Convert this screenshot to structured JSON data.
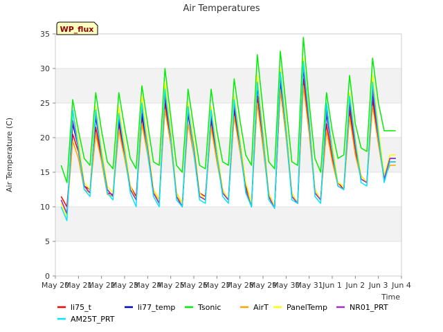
{
  "chart_data": {
    "type": "line",
    "title": "Air Temperatures",
    "xlabel": "Time",
    "ylabel": "Air Temperature (C)",
    "site_label": "WP_flux",
    "ylim": [
      0,
      35
    ],
    "yticks": [
      0,
      5,
      10,
      15,
      20,
      25,
      30,
      35
    ],
    "xlim": [
      0,
      15
    ],
    "xticks": [
      0,
      1,
      2,
      3,
      4,
      5,
      6,
      7,
      8,
      9,
      10,
      11,
      12,
      13,
      14,
      15
    ],
    "xtick_labels": [
      "May 20",
      "May 21",
      "May 22",
      "May 23",
      "May 24",
      "May 25",
      "May 26",
      "May 27",
      "May 28",
      "May 29",
      "May 30",
      "May 31",
      "Jun 1",
      "Jun 2",
      "Jun 3",
      "Jun 4"
    ],
    "grid": "alternating horizontal bands",
    "legend_position": "bottom",
    "x_desc": "day index from May 20 (sampled every 0.25 day)",
    "x": [
      0.25,
      0.5,
      0.75,
      1.0,
      1.25,
      1.5,
      1.75,
      2.0,
      2.25,
      2.5,
      2.75,
      3.0,
      3.25,
      3.5,
      3.75,
      4.0,
      4.25,
      4.5,
      4.75,
      5.0,
      5.25,
      5.5,
      5.75,
      6.0,
      6.25,
      6.5,
      6.75,
      7.0,
      7.25,
      7.5,
      7.75,
      8.0,
      8.25,
      8.5,
      8.75,
      9.0,
      9.25,
      9.5,
      9.75,
      10.0,
      10.25,
      10.5,
      10.75,
      11.0,
      11.25,
      11.5,
      11.75,
      12.0,
      12.25,
      12.5,
      12.75,
      13.0,
      13.25,
      13.5,
      13.75,
      14.0,
      14.25,
      14.5,
      14.75
    ],
    "series": [
      {
        "name": "li75_t",
        "color": "#ff0000",
        "values": [
          11.5,
          10.0,
          20.5,
          18.0,
          13.0,
          12.5,
          21.5,
          17.0,
          12.0,
          11.8,
          22.0,
          17.5,
          13.0,
          11.5,
          23.0,
          18.0,
          12.5,
          11.0,
          25.0,
          19.5,
          12.0,
          10.5,
          23.5,
          18.0,
          12.0,
          11.5,
          22.5,
          17.0,
          12.5,
          11.0,
          24.0,
          18.5,
          13.0,
          10.5,
          26.0,
          19.0,
          12.0,
          10.0,
          27.0,
          20.5,
          12.0,
          10.5,
          28.5,
          21.0,
          12.5,
          11.0,
          22.0,
          17.0,
          13.5,
          12.5,
          24.0,
          18.0,
          14.5,
          13.5,
          25.5,
          19.5,
          14.0,
          16.5,
          16.5
        ]
      },
      {
        "name": "li77_temp",
        "color": "#0000cc",
        "values": [
          11.0,
          9.0,
          22.0,
          18.5,
          13.0,
          12.0,
          23.0,
          17.5,
          12.5,
          11.5,
          22.5,
          18.0,
          12.5,
          11.0,
          23.5,
          18.5,
          12.0,
          10.5,
          26.0,
          20.0,
          11.5,
          10.0,
          23.5,
          18.5,
          11.5,
          11.0,
          23.0,
          17.5,
          12.0,
          11.0,
          24.5,
          19.0,
          12.5,
          10.0,
          27.5,
          20.0,
          11.5,
          9.8,
          28.0,
          21.0,
          11.5,
          10.5,
          30.0,
          22.0,
          12.0,
          11.0,
          23.5,
          18.0,
          13.0,
          12.5,
          25.0,
          19.0,
          14.0,
          13.5,
          26.5,
          20.0,
          14.0,
          17.0,
          17.0
        ]
      },
      {
        "name": "Tsonic",
        "color": "#00ee00",
        "values": [
          16.0,
          13.5,
          25.5,
          21.0,
          17.0,
          16.0,
          26.5,
          21.0,
          16.5,
          15.5,
          26.5,
          21.5,
          17.0,
          15.5,
          27.5,
          22.0,
          16.5,
          16.0,
          30.0,
          23.0,
          16.0,
          15.0,
          27.0,
          21.5,
          16.0,
          15.5,
          27.0,
          21.0,
          16.5,
          16.0,
          28.5,
          22.5,
          17.5,
          16.0,
          32.0,
          24.0,
          16.5,
          15.5,
          32.5,
          24.5,
          16.5,
          16.0,
          34.5,
          25.0,
          17.0,
          15.0,
          26.5,
          21.0,
          17.0,
          17.5,
          29.0,
          22.0,
          18.5,
          18.0,
          31.5,
          25.0,
          21.0,
          21.0,
          21.0
        ]
      },
      {
        "name": "AirT",
        "color": "#ffa500",
        "values": [
          11.0,
          9.0,
          19.5,
          17.0,
          12.5,
          12.0,
          20.5,
          16.5,
          11.8,
          11.5,
          21.0,
          17.0,
          12.5,
          11.0,
          22.0,
          17.5,
          12.0,
          11.0,
          24.0,
          19.0,
          11.5,
          10.5,
          22.0,
          17.5,
          11.5,
          11.0,
          21.5,
          16.5,
          12.0,
          11.0,
          23.0,
          18.0,
          12.5,
          10.5,
          25.0,
          18.5,
          11.5,
          10.0,
          27.0,
          20.0,
          11.5,
          10.5,
          27.5,
          20.5,
          12.0,
          11.0,
          21.0,
          16.5,
          13.0,
          12.5,
          23.0,
          17.5,
          14.0,
          13.5,
          24.5,
          19.0,
          14.0,
          16.0,
          16.0
        ]
      },
      {
        "name": "PanelTemp",
        "color": "#ffff00",
        "values": [
          10.5,
          8.5,
          24.0,
          19.5,
          13.5,
          12.5,
          24.5,
          18.5,
          13.0,
          12.0,
          24.5,
          19.0,
          13.0,
          11.0,
          26.0,
          19.5,
          12.5,
          11.0,
          28.0,
          21.0,
          12.0,
          10.5,
          25.0,
          19.5,
          12.0,
          11.0,
          24.5,
          18.5,
          12.5,
          11.0,
          26.0,
          20.0,
          13.5,
          10.5,
          29.0,
          21.0,
          12.0,
          10.0,
          30.0,
          22.0,
          12.0,
          10.5,
          31.5,
          23.0,
          12.5,
          11.0,
          24.5,
          19.0,
          13.5,
          13.0,
          26.5,
          20.0,
          14.5,
          13.5,
          29.0,
          21.5,
          14.5,
          17.5,
          17.5
        ]
      },
      {
        "name": "NR01_PRT",
        "color": "#9932cc",
        "values": [
          11.0,
          9.0,
          22.5,
          18.5,
          13.0,
          12.0,
          23.5,
          17.5,
          12.5,
          11.5,
          23.0,
          18.0,
          12.5,
          11.0,
          24.5,
          18.5,
          12.0,
          10.5,
          26.5,
          20.0,
          11.5,
          10.0,
          24.0,
          18.5,
          11.5,
          11.0,
          23.5,
          17.5,
          12.0,
          11.0,
          25.0,
          19.0,
          12.5,
          10.0,
          28.0,
          20.0,
          11.5,
          9.8,
          29.0,
          21.0,
          11.5,
          10.5,
          30.5,
          22.0,
          12.0,
          11.0,
          24.0,
          18.0,
          13.0,
          12.5,
          25.5,
          19.0,
          14.0,
          13.5,
          27.0,
          20.0,
          14.0,
          17.0,
          17.0
        ]
      },
      {
        "name": "AM25T_PRT",
        "color": "#00e5ff",
        "values": [
          10.0,
          8.0,
          24.0,
          18.5,
          12.5,
          11.5,
          24.0,
          17.5,
          12.0,
          11.0,
          23.5,
          18.0,
          12.0,
          10.0,
          25.0,
          18.0,
          11.5,
          10.0,
          27.0,
          20.0,
          11.0,
          10.0,
          24.5,
          18.0,
          11.0,
          10.5,
          24.0,
          17.5,
          11.5,
          10.5,
          25.5,
          19.0,
          12.0,
          10.0,
          28.0,
          20.0,
          11.0,
          9.8,
          29.5,
          21.0,
          11.0,
          10.5,
          31.0,
          22.5,
          11.5,
          10.5,
          25.0,
          18.0,
          13.0,
          12.5,
          26.0,
          19.5,
          13.5,
          13.0,
          28.0,
          20.5,
          13.5,
          16.5,
          16.5
        ]
      }
    ]
  }
}
